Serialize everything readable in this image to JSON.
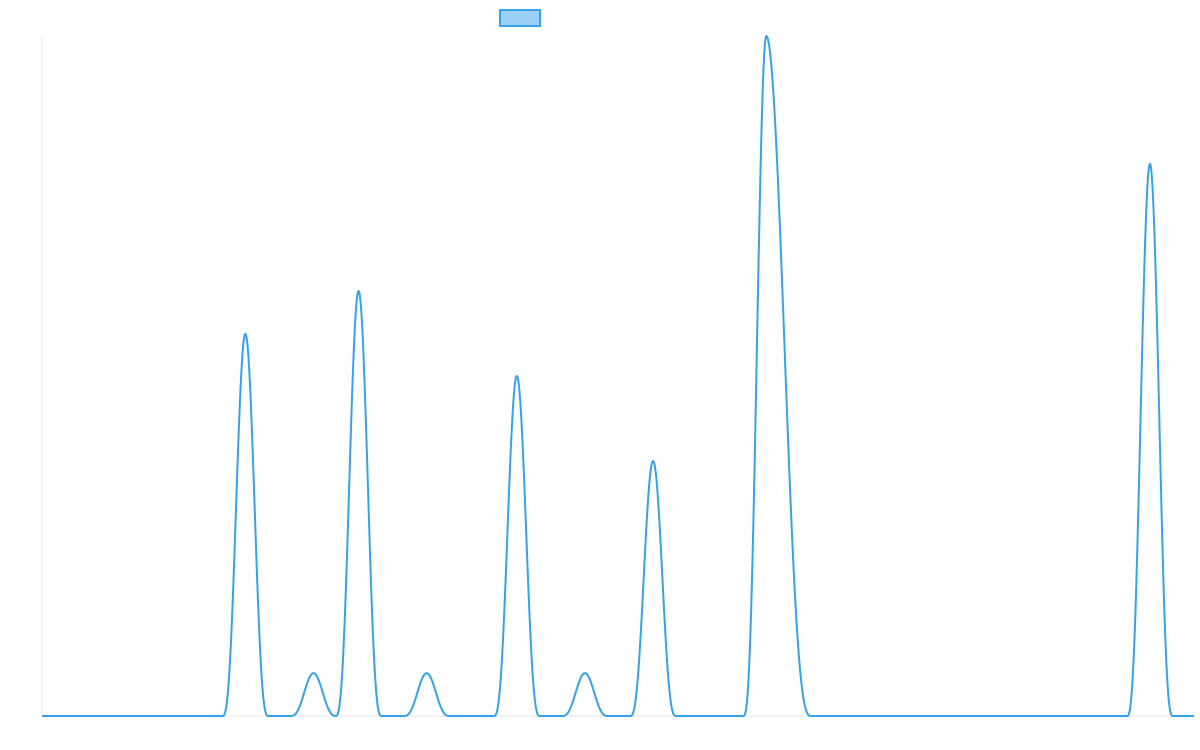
{
  "chart_data": {
    "type": "line",
    "title": "",
    "xlabel": "",
    "ylabel": "",
    "grid": false,
    "legend_placement": "top-center",
    "xlim": [
      0,
      1150
    ],
    "ylim": [
      0,
      1
    ],
    "series": [
      {
        "color": "#36a2eb",
        "fill_color": "#9ad0f5",
        "peaks": [
          {
            "center": 203,
            "height": 0.562,
            "halfwidth": 23
          },
          {
            "center": 271,
            "height": 0.063,
            "halfwidth": 23
          },
          {
            "center": 316,
            "height": 0.625,
            "halfwidth": 23
          },
          {
            "center": 384,
            "height": 0.063,
            "halfwidth": 23
          },
          {
            "center": 474,
            "height": 0.5,
            "halfwidth": 23
          },
          {
            "center": 542,
            "height": 0.063,
            "halfwidth": 23
          },
          {
            "center": 610,
            "height": 0.375,
            "halfwidth": 23
          },
          {
            "center": 723,
            "height": 1.0,
            "halfwidth": 23,
            "right_halfwidth": 45
          },
          {
            "center": 1106,
            "height": 0.812,
            "halfwidth": 23
          }
        ]
      }
    ]
  }
}
